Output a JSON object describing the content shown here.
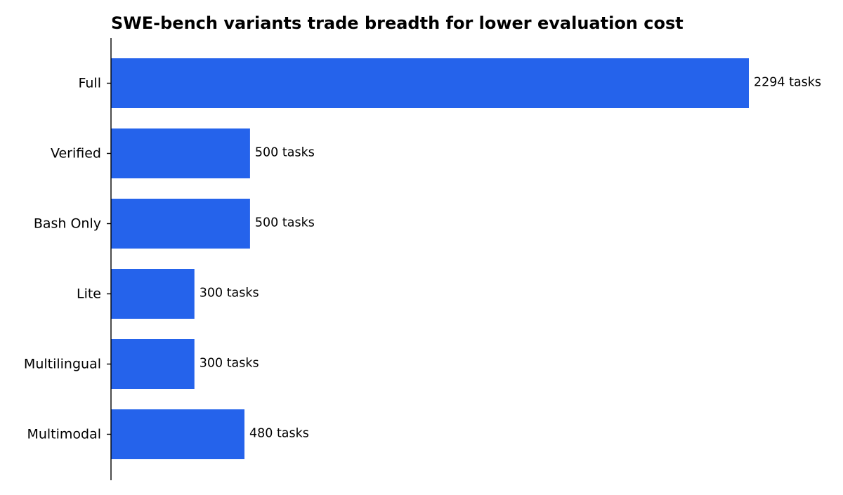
{
  "chart_data": {
    "type": "bar",
    "orientation": "horizontal",
    "title": "SWE-bench variants trade breadth for lower evaluation cost",
    "xlabel": "",
    "ylabel": "",
    "categories": [
      "Full",
      "Verified",
      "Bash Only",
      "Lite",
      "Multilingual",
      "Multimodal"
    ],
    "values": [
      2294,
      500,
      500,
      300,
      300,
      480
    ],
    "data_labels": [
      "2294 tasks",
      "500 tasks",
      "500 tasks",
      "300 tasks",
      "300 tasks",
      "480 tasks"
    ],
    "xlim": [
      0,
      2294
    ],
    "grid": false,
    "legend": "none",
    "bar_color": "#2563eb",
    "axis_color": "#000000"
  }
}
